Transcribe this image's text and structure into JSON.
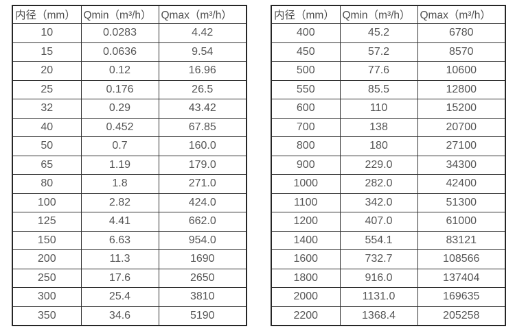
{
  "colors": {
    "background": "#ffffff",
    "border": "#262626",
    "text": "#4d4d4d"
  },
  "tables": [
    {
      "name": "flow-rate-table-small-diameters",
      "headers": [
        "内径（mm）",
        "Qmin（m³/h）",
        "Qmax（m³/h）"
      ],
      "rows": [
        [
          "10",
          "0.0283",
          "4.42"
        ],
        [
          "15",
          "0.0636",
          "9.54"
        ],
        [
          "20",
          "0.12",
          "16.96"
        ],
        [
          "25",
          "0.176",
          "26.5"
        ],
        [
          "32",
          "0.29",
          "43.42"
        ],
        [
          "40",
          "0.452",
          "67.85"
        ],
        [
          "50",
          "0.7",
          "160.0"
        ],
        [
          "65",
          "1.19",
          "179.0"
        ],
        [
          "80",
          "1.8",
          "271.0"
        ],
        [
          "100",
          "2.82",
          "424.0"
        ],
        [
          "125",
          "4.41",
          "662.0"
        ],
        [
          "150",
          "6.63",
          "954.0"
        ],
        [
          "200",
          "11.3",
          "1690"
        ],
        [
          "250",
          "17.6",
          "2650"
        ],
        [
          "300",
          "25.4",
          "3810"
        ],
        [
          "350",
          "34.6",
          "5190"
        ]
      ]
    },
    {
      "name": "flow-rate-table-large-diameters",
      "headers": [
        "内径（mm）",
        "Qmin（m³/h）",
        "Qmax（m³/h）"
      ],
      "rows": [
        [
          "400",
          "45.2",
          "6780"
        ],
        [
          "450",
          "57.2",
          "8570"
        ],
        [
          "500",
          "77.6",
          "10600"
        ],
        [
          "550",
          "85.5",
          "12800"
        ],
        [
          "600",
          "110",
          "15200"
        ],
        [
          "700",
          "138",
          "20700"
        ],
        [
          "800",
          "180",
          "27100"
        ],
        [
          "900",
          "229.0",
          "34300"
        ],
        [
          "1000",
          "282.0",
          "42400"
        ],
        [
          "1100",
          "342.0",
          "51300"
        ],
        [
          "1200",
          "407.0",
          "61000"
        ],
        [
          "1400",
          "554.1",
          "83121"
        ],
        [
          "1600",
          "732.7",
          "108566"
        ],
        [
          "1800",
          "916.0",
          "137404"
        ],
        [
          "2000",
          "1131.0",
          "169635"
        ],
        [
          "2200",
          "1368.4",
          "205258"
        ]
      ]
    }
  ]
}
